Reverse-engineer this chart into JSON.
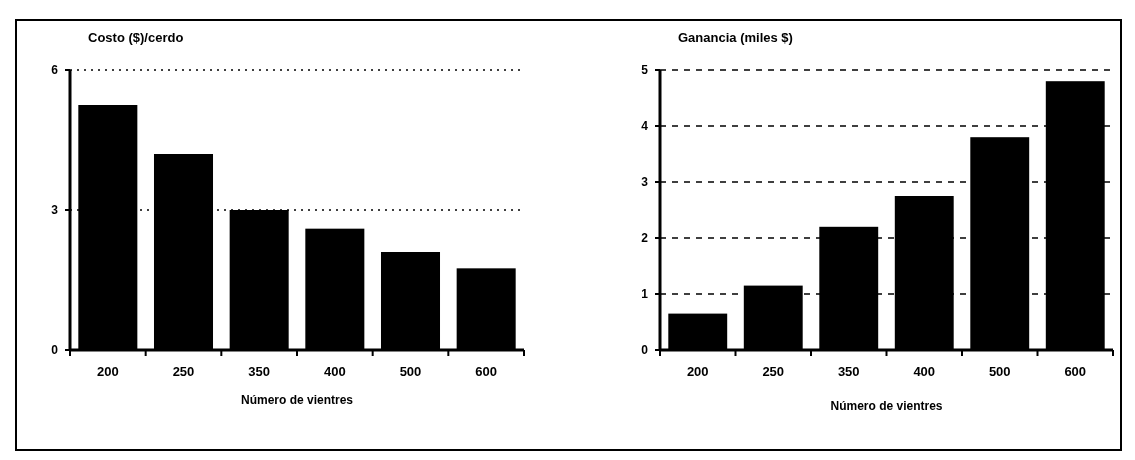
{
  "chart_data": [
    {
      "type": "bar",
      "title": "Costo ($)/cerdo",
      "xlabel": "Número de vientres",
      "categories": [
        "200",
        "250",
        "350",
        "400",
        "500",
        "600"
      ],
      "values": [
        5.25,
        4.2,
        3.0,
        2.6,
        2.1,
        1.75
      ],
      "color": "#000000",
      "ylim": [
        0,
        6
      ],
      "yticks": [
        0,
        3,
        6
      ],
      "grid": "y"
    },
    {
      "type": "bar",
      "title": "Ganancia (miles $)",
      "xlabel": "Número de vientres",
      "categories": [
        "200",
        "250",
        "350",
        "400",
        "500",
        "600"
      ],
      "values": [
        0.65,
        1.15,
        2.2,
        2.75,
        3.8,
        4.8
      ],
      "color": "#000000",
      "ylim": [
        0,
        5
      ],
      "yticks": [
        0,
        1,
        2,
        3,
        4,
        5
      ],
      "grid": "y"
    }
  ]
}
